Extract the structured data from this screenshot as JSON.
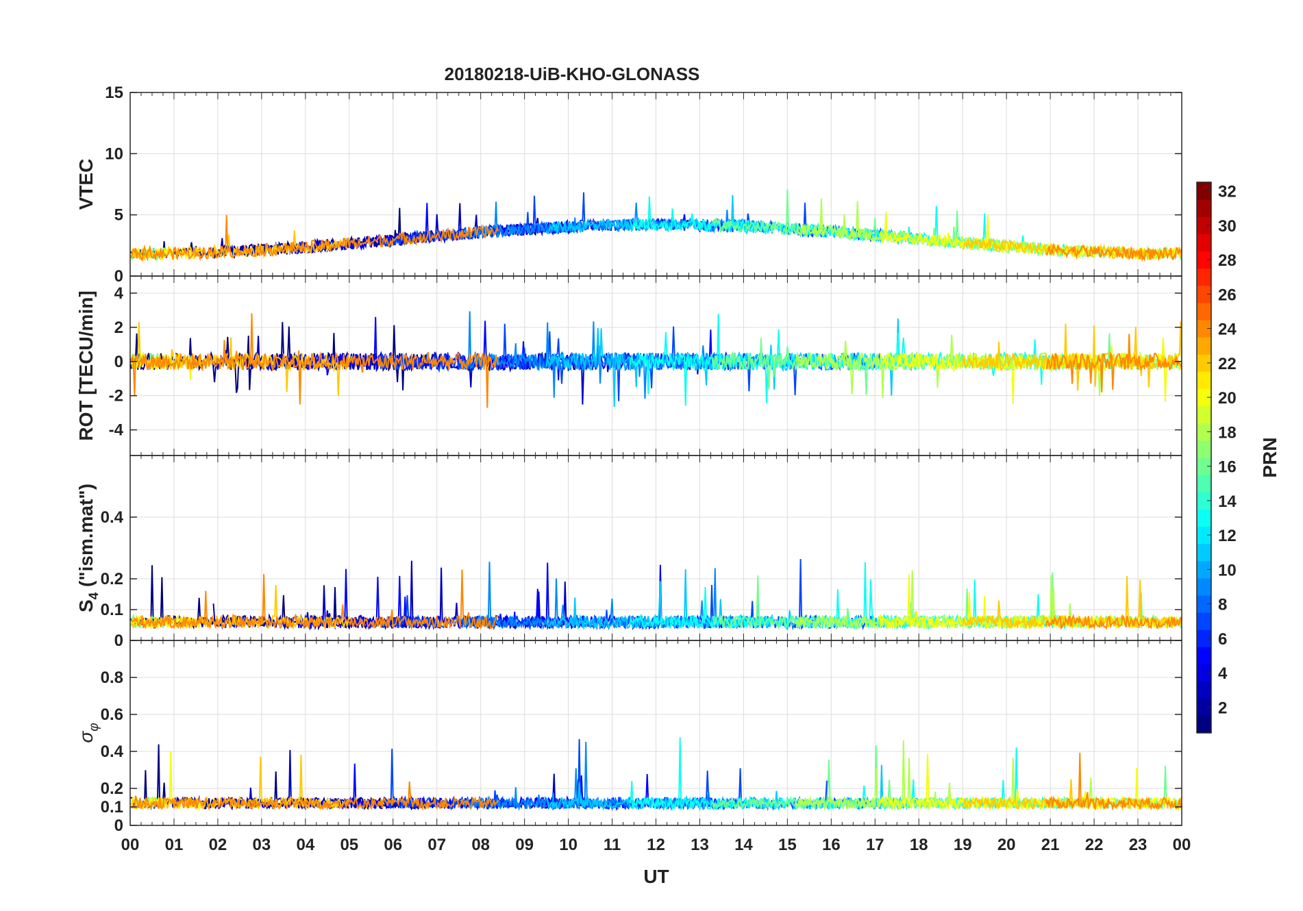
{
  "chart_data": {
    "type": "line",
    "title": "20180218-UiB-KHO-GLONASS",
    "xlabel": "UT",
    "x_tick_labels": [
      "00",
      "01",
      "02",
      "03",
      "04",
      "05",
      "06",
      "07",
      "08",
      "09",
      "10",
      "11",
      "12",
      "13",
      "14",
      "15",
      "16",
      "17",
      "18",
      "19",
      "20",
      "21",
      "22",
      "23",
      "00"
    ],
    "xlim_hours": [
      0,
      24
    ],
    "grid": true,
    "panels": [
      {
        "name": "vtec",
        "ylabel": "VTEC",
        "ylim": [
          0,
          15
        ],
        "ytick_values": [
          0,
          5,
          10,
          15
        ],
        "ytick_labels": [
          "0",
          "5",
          "10",
          "15"
        ],
        "baseline": 3.0,
        "amplitude": 0.6,
        "noise": 0.5,
        "spike_rate": 0.01,
        "spike_mag": 3.0
      },
      {
        "name": "rot",
        "ylabel": "ROT [TECU/min]",
        "ylim": [
          -5.5,
          5
        ],
        "ytick_values": [
          -4,
          -2,
          0,
          2,
          4
        ],
        "ytick_labels": [
          "-4",
          "-2",
          "0",
          "2",
          "4"
        ],
        "baseline": 0.0,
        "amplitude": 0.0,
        "noise": 0.5,
        "spike_rate": 0.03,
        "spike_mag": 2.5
      },
      {
        "name": "s4",
        "ylabel": "S4 (\"ism.mat\")",
        "ylabel_main": "S",
        "ylabel_sub": "4",
        "ylabel_rest": " (\"ism.mat\")",
        "ylim": [
          0,
          0.6
        ],
        "ytick_values": [
          0,
          0.1,
          0.2,
          0.4
        ],
        "ytick_labels": [
          "0",
          "0.1",
          "0.2",
          "0.4"
        ],
        "baseline": 0.06,
        "amplitude": 0.0,
        "noise": 0.02,
        "spike_rate": 0.02,
        "spike_mag": 0.2
      },
      {
        "name": "sigma-phi",
        "ylabel": "σφ",
        "ylabel_main": "σ",
        "ylabel_sub": "φ",
        "ylim": [
          0,
          1
        ],
        "ytick_values": [
          0,
          0.1,
          0.2,
          0.4,
          0.6,
          0.8
        ],
        "ytick_labels": [
          "0",
          "0.1",
          "0.2",
          "0.4",
          "0.6",
          "0.8"
        ],
        "baseline": 0.12,
        "amplitude": 0.0,
        "noise": 0.03,
        "spike_rate": 0.015,
        "spike_mag": 0.35
      }
    ],
    "colorbar": {
      "label": "PRN",
      "range": [
        1,
        32
      ],
      "tick_values": [
        2,
        4,
        6,
        8,
        10,
        12,
        14,
        16,
        18,
        20,
        22,
        24,
        26,
        28,
        30,
        32
      ],
      "tick_labels": [
        "2",
        "4",
        "6",
        "8",
        "10",
        "12",
        "14",
        "16",
        "18",
        "20",
        "22",
        "24",
        "26",
        "28",
        "30",
        "32"
      ],
      "colormap": "jet"
    },
    "series_prn": [
      1,
      3,
      5,
      7,
      9,
      11,
      13,
      16,
      18,
      20,
      22,
      24
    ]
  }
}
